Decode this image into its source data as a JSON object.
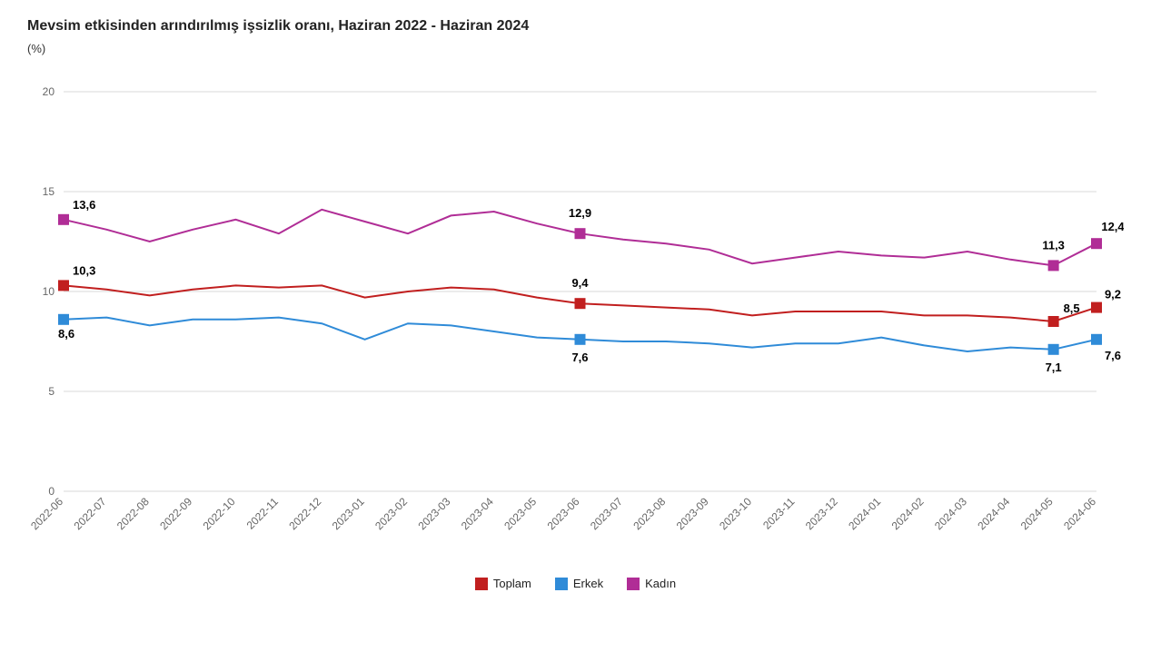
{
  "title": "Mevsim etkisinden arındırılmış işsizlik oranı, Haziran 2022 - Haziran 2024",
  "subtitle": "(%)",
  "chart": {
    "type": "line",
    "categories": [
      "2022-06",
      "2022-07",
      "2022-08",
      "2022-09",
      "2022-10",
      "2022-11",
      "2022-12",
      "2023-01",
      "2023-02",
      "2023-03",
      "2023-04",
      "2023-05",
      "2023-06",
      "2023-07",
      "2023-08",
      "2023-09",
      "2023-10",
      "2023-11",
      "2023-12",
      "2024-01",
      "2024-02",
      "2024-03",
      "2024-04",
      "2024-05",
      "2024-06"
    ],
    "ylim": [
      0,
      20
    ],
    "yticks": [
      0,
      5,
      10,
      15,
      20
    ],
    "grid_color": "#d9d9d9",
    "axis_color": "#bfbfbf",
    "background_color": "#ffffff",
    "tick_fontsize": 12,
    "tick_color": "#666666",
    "dlabel_fontsize": 13,
    "dlabel_fontweight": "700",
    "dlabel_color": "#000000",
    "line_width": 2,
    "marker_size": 12,
    "series": [
      {
        "name_key": "legend.kadin",
        "color": "#b02d96",
        "values": [
          13.6,
          13.1,
          12.5,
          13.1,
          13.6,
          12.9,
          14.1,
          13.5,
          12.9,
          13.8,
          14.0,
          13.4,
          12.9,
          12.6,
          12.4,
          12.1,
          11.4,
          11.7,
          12.0,
          11.8,
          11.7,
          12.0,
          11.6,
          11.3,
          12.4
        ],
        "highlights": [
          {
            "i": 0,
            "label": "13,6",
            "label_dx": 10,
            "label_dy": -12,
            "anchor": "start"
          },
          {
            "i": 12,
            "label": "12,9",
            "label_dx": 0,
            "label_dy": -18,
            "anchor": "middle"
          },
          {
            "i": 23,
            "label": "11,3",
            "label_dx": 0,
            "label_dy": -18,
            "anchor": "middle"
          },
          {
            "i": 24,
            "label": "12,4",
            "label_dx": 18,
            "label_dy": -14,
            "anchor": "middle"
          }
        ]
      },
      {
        "name_key": "legend.toplam",
        "color": "#c11f1f",
        "values": [
          10.3,
          10.1,
          9.8,
          10.1,
          10.3,
          10.2,
          10.3,
          9.7,
          10.0,
          10.2,
          10.1,
          9.7,
          9.4,
          9.3,
          9.2,
          9.1,
          8.8,
          9.0,
          9.0,
          9.0,
          8.8,
          8.8,
          8.7,
          8.5,
          9.2
        ],
        "highlights": [
          {
            "i": 0,
            "label": "10,3",
            "label_dx": 10,
            "label_dy": -12,
            "anchor": "start"
          },
          {
            "i": 12,
            "label": "9,4",
            "label_dx": 0,
            "label_dy": -18,
            "anchor": "middle"
          },
          {
            "i": 23,
            "label": "8,5",
            "label_dx": 20,
            "label_dy": -10,
            "anchor": "middle"
          },
          {
            "i": 24,
            "label": "9,2",
            "label_dx": 18,
            "label_dy": -10,
            "anchor": "middle"
          }
        ]
      },
      {
        "name_key": "legend.erkek",
        "color": "#2f8bd8",
        "values": [
          8.6,
          8.7,
          8.3,
          8.6,
          8.6,
          8.7,
          8.4,
          7.6,
          8.4,
          8.3,
          8.0,
          7.7,
          7.6,
          7.5,
          7.5,
          7.4,
          7.2,
          7.4,
          7.4,
          7.7,
          7.3,
          7.0,
          7.2,
          7.1,
          7.6
        ],
        "highlights": [
          {
            "i": 0,
            "label": "8,6",
            "label_dx": -6,
            "label_dy": 20,
            "anchor": "start"
          },
          {
            "i": 12,
            "label": "7,6",
            "label_dx": 0,
            "label_dy": 24,
            "anchor": "middle"
          },
          {
            "i": 23,
            "label": "7,1",
            "label_dx": 0,
            "label_dy": 24,
            "anchor": "middle"
          },
          {
            "i": 24,
            "label": "7,6",
            "label_dx": 18,
            "label_dy": 22,
            "anchor": "middle"
          }
        ]
      }
    ]
  },
  "legend": {
    "toplam": "Toplam",
    "erkek": "Erkek",
    "kadin": "Kadın",
    "order": [
      "toplam",
      "erkek",
      "kadin"
    ],
    "colors": {
      "toplam": "#c11f1f",
      "erkek": "#2f8bd8",
      "kadin": "#b02d96"
    }
  }
}
